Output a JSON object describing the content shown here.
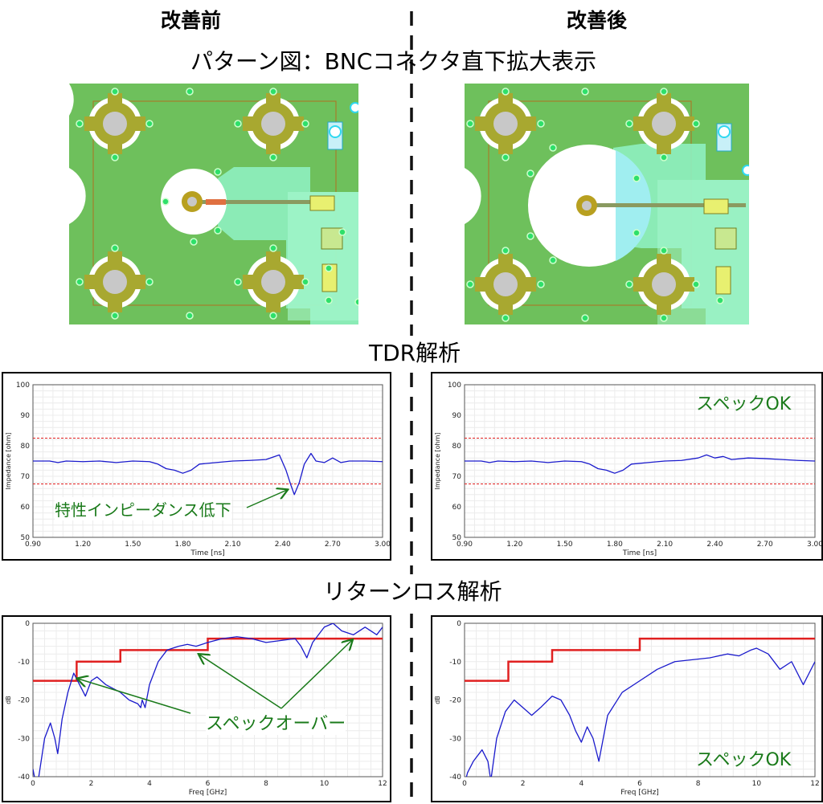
{
  "headers": {
    "before": "改善前",
    "after": "改善後"
  },
  "sections": {
    "pattern": "パターン図：BNCコネクタ直下拡大表示",
    "tdr": "TDR解析",
    "return_loss": "リターンロス解析"
  },
  "annotations": {
    "impedance_drop": "特性インピーダンス低下",
    "spec_ok": "スペックOK",
    "spec_over": "スペックオーバー"
  },
  "colors": {
    "board_green": "#6ec05c",
    "pad_gold": "#a8a830",
    "trace_teal": "#8ef0c0",
    "pin_cyan": "#2fd8f0",
    "spec_red": "#e02020",
    "curve_blue": "#1a1acc",
    "annot_green": "#1a7a1a"
  },
  "chart_data": [
    {
      "id": "tdr_before",
      "type": "line",
      "xlabel": "Time [ns]",
      "ylabel": "Impedance [ohm]",
      "xlim": [
        0.9,
        3.0
      ],
      "ylim": [
        50,
        100
      ],
      "xticks": [
        "0.90",
        "1.20",
        "1.50",
        "1.80",
        "2.10",
        "2.40",
        "2.70",
        "3.00"
      ],
      "yticks": [
        "50",
        "60",
        "70",
        "80",
        "90",
        "100"
      ],
      "spec_lines": [
        82.5,
        67.5
      ],
      "series": [
        {
          "x": [
            0.9,
            1.0,
            1.05,
            1.1,
            1.2,
            1.3,
            1.4,
            1.5,
            1.6,
            1.65,
            1.7,
            1.75,
            1.8,
            1.85,
            1.9,
            2.0,
            2.1,
            2.2,
            2.3,
            2.38,
            2.42,
            2.45,
            2.47,
            2.5,
            2.53,
            2.57,
            2.6,
            2.65,
            2.7,
            2.75,
            2.8,
            2.9,
            3.0
          ],
          "y": [
            75,
            75,
            74.5,
            75,
            74.8,
            75,
            74.5,
            75,
            74.8,
            74,
            72.5,
            72,
            71,
            72,
            74,
            74.5,
            75,
            75.2,
            75.5,
            77,
            72,
            67,
            64,
            68,
            74,
            77.5,
            75,
            74.5,
            76,
            74.5,
            75,
            75,
            74.8
          ]
        }
      ]
    },
    {
      "id": "tdr_after",
      "type": "line",
      "xlabel": "Time [ns]",
      "ylabel": "Impedance [ohm]",
      "xlim": [
        0.9,
        3.0
      ],
      "ylim": [
        50,
        100
      ],
      "xticks": [
        "0.90",
        "1.20",
        "1.50",
        "1.80",
        "2.10",
        "2.40",
        "2.70",
        "3.00"
      ],
      "yticks": [
        "50",
        "60",
        "70",
        "80",
        "90",
        "100"
      ],
      "spec_lines": [
        82.5,
        67.5
      ],
      "series": [
        {
          "x": [
            0.9,
            1.0,
            1.05,
            1.1,
            1.2,
            1.3,
            1.4,
            1.5,
            1.6,
            1.65,
            1.7,
            1.75,
            1.8,
            1.85,
            1.9,
            2.0,
            2.1,
            2.2,
            2.3,
            2.35,
            2.4,
            2.45,
            2.5,
            2.6,
            2.7,
            2.8,
            2.9,
            3.0
          ],
          "y": [
            75,
            75,
            74.5,
            75,
            74.8,
            75,
            74.5,
            75,
            74.8,
            74,
            72.5,
            72,
            71,
            72,
            74,
            74.5,
            75,
            75.2,
            76,
            77,
            76,
            76.5,
            75.5,
            76,
            75.8,
            75.5,
            75.2,
            75
          ]
        }
      ]
    },
    {
      "id": "rl_before",
      "type": "line",
      "xlabel": "Freq [GHz]",
      "ylabel": "dB",
      "xlim": [
        0,
        12
      ],
      "ylim": [
        -40,
        0
      ],
      "xticks": [
        "0",
        "2",
        "4",
        "6",
        "8",
        "10",
        "12"
      ],
      "yticks": [
        "0",
        "-10",
        "-20",
        "-30",
        "-40"
      ],
      "spec_x": [
        0,
        1.5,
        1.5,
        3,
        3,
        6,
        6,
        12
      ],
      "spec_y": [
        -15,
        -15,
        -10,
        -10,
        -7,
        -7,
        -4,
        -4
      ],
      "series": [
        {
          "x": [
            0,
            0.1,
            0.2,
            0.4,
            0.6,
            0.75,
            0.85,
            1.0,
            1.2,
            1.4,
            1.6,
            1.8,
            2.0,
            2.2,
            2.5,
            3.0,
            3.3,
            3.6,
            3.7,
            3.75,
            3.85,
            4.0,
            4.3,
            4.6,
            5.0,
            5.3,
            5.6,
            6.0,
            6.5,
            7.0,
            7.5,
            8.0,
            8.5,
            9.0,
            9.2,
            9.4,
            9.6,
            10.0,
            10.3,
            10.6,
            11.0,
            11.4,
            11.8,
            12.0
          ],
          "y": [
            -38,
            -42,
            -40,
            -30,
            -26,
            -30,
            -34,
            -25,
            -18,
            -13,
            -16,
            -19,
            -15,
            -14,
            -16,
            -18,
            -20,
            -21,
            -22,
            -20,
            -22,
            -16,
            -10,
            -7,
            -6,
            -5.5,
            -6,
            -5,
            -4,
            -3.5,
            -4,
            -5,
            -4.5,
            -4,
            -6,
            -9,
            -5,
            -1,
            0,
            -2,
            -3,
            -1,
            -3,
            -1
          ]
        }
      ]
    },
    {
      "id": "rl_after",
      "type": "line",
      "xlabel": "Freq [GHz]",
      "ylabel": "dB",
      "xlim": [
        0,
        12
      ],
      "ylim": [
        -40,
        0
      ],
      "xticks": [
        "0",
        "2",
        "4",
        "6",
        "8",
        "10",
        "12"
      ],
      "yticks": [
        "0",
        "-10",
        "-20",
        "-30",
        "-40"
      ],
      "spec_x": [
        0,
        1.5,
        1.5,
        3,
        3,
        6,
        6,
        12
      ],
      "spec_y": [
        -15,
        -15,
        -10,
        -10,
        -7,
        -7,
        -4,
        -4
      ],
      "series": [
        {
          "x": [
            0,
            0.1,
            0.3,
            0.6,
            0.8,
            0.9,
            1.1,
            1.4,
            1.7,
            2.0,
            2.3,
            2.6,
            3.0,
            3.3,
            3.6,
            3.8,
            4.0,
            4.2,
            4.4,
            4.6,
            4.9,
            5.4,
            6.0,
            6.6,
            7.2,
            7.8,
            8.4,
            9.0,
            9.4,
            9.8,
            10.0,
            10.4,
            10.8,
            11.2,
            11.6,
            12.0
          ],
          "y": [
            -42,
            -39,
            -36,
            -33,
            -36,
            -41,
            -30,
            -23,
            -20,
            -22,
            -24,
            -22,
            -19,
            -20,
            -24,
            -28,
            -31,
            -27,
            -30,
            -36,
            -24,
            -18,
            -15,
            -12,
            -10,
            -9.5,
            -9,
            -8,
            -8.5,
            -7,
            -6.5,
            -8,
            -12,
            -10,
            -16,
            -10
          ]
        }
      ]
    }
  ]
}
